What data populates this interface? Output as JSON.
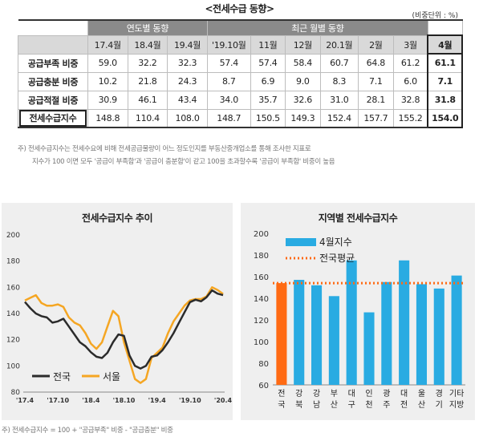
{
  "table": {
    "title": "<전세수급 동향>",
    "unit": "(비중단위 : %)",
    "group_yearly": "연도별 동향",
    "group_monthly": "최근 월별 동향",
    "columns": [
      "17.4월",
      "18.4월",
      "19.4월",
      "'19.10월",
      "11월",
      "12월",
      "20.1월",
      "2월",
      "3월",
      "4월"
    ],
    "rows": [
      {
        "label": "공급부족 비중",
        "values": [
          "59.0",
          "32.2",
          "32.3",
          "57.4",
          "57.4",
          "58.4",
          "60.7",
          "64.8",
          "61.2",
          "61.1"
        ]
      },
      {
        "label": "공급충분 비중",
        "values": [
          "10.2",
          "21.8",
          "24.3",
          "8.7",
          "6.9",
          "9.0",
          "8.3",
          "7.1",
          "6.0",
          "7.1"
        ]
      },
      {
        "label": "공급적절 비중",
        "values": [
          "30.9",
          "46.1",
          "43.4",
          "34.0",
          "35.7",
          "32.6",
          "31.0",
          "28.1",
          "32.8",
          "31.8"
        ]
      },
      {
        "label": "전세수급지수",
        "values": [
          "148.8",
          "110.4",
          "108.0",
          "148.7",
          "150.5",
          "149.3",
          "152.4",
          "157.7",
          "155.2",
          "154.0"
        ]
      }
    ],
    "note_line1": "주) 전세수급지수는 전세수요에 비해 전세공급물량이 어느 정도인지를 부동산중개업소를 통해 조사한 지표로",
    "note_line2": "지수가 100 이면 모두 '공급이 부족함'과 '공급이 충분함'이 같고 100을 초과할수록 '공급이 부족함' 비중이 높음"
  },
  "footnote": "주) 전세수급지수 = 100 + \"공급부족\" 비중 - \"공급충분\" 비중",
  "colors": {
    "national": "#2b2b2b",
    "seoul": "#f5a623",
    "bar": "#29abe2",
    "bar_national": "#ff6a13",
    "avg": "#ff6a13"
  },
  "chart_data": [
    {
      "type": "line",
      "title": "전세수급지수 추이",
      "ylim": [
        80,
        200
      ],
      "yticks": [
        80,
        100,
        120,
        140,
        160,
        180,
        200
      ],
      "xticks": [
        "'17.4",
        "'17.10",
        "'18.4",
        "'18.10",
        "'19.4",
        "'19.10",
        "'20.4"
      ],
      "legend_position": "bottom-left",
      "series": [
        {
          "name": "전국",
          "values": [
            148.8,
            144,
            140,
            138,
            137,
            133,
            134,
            136,
            130,
            124,
            118,
            115,
            110.4,
            107,
            106,
            110,
            118,
            124,
            123,
            108,
            100,
            98,
            100,
            107,
            108,
            112,
            118,
            125,
            133,
            141,
            148.7,
            150.5,
            149.3,
            152.4,
            157.7,
            155.2,
            154.0
          ]
        },
        {
          "name": "서울",
          "values": [
            150,
            152,
            154,
            148,
            146,
            146,
            147,
            145,
            137,
            133,
            131,
            125,
            117,
            113,
            118,
            130,
            142,
            138,
            118,
            104,
            90,
            87,
            90,
            106,
            110,
            114,
            125,
            134,
            140,
            146,
            150,
            151,
            151,
            153,
            160,
            158,
            155
          ]
        }
      ]
    },
    {
      "type": "bar",
      "title": "지역별 전세수급지수",
      "ylim": [
        60,
        200
      ],
      "yticks": [
        60,
        80,
        100,
        120,
        140,
        160,
        180,
        200
      ],
      "categories": [
        [
          "전",
          "국"
        ],
        [
          "강",
          "북"
        ],
        [
          "강",
          "남"
        ],
        [
          "부",
          "산"
        ],
        [
          "대",
          "구"
        ],
        [
          "인",
          "천"
        ],
        [
          "광",
          "주"
        ],
        [
          "대",
          "전"
        ],
        [
          "울",
          "산"
        ],
        [
          "경",
          "기"
        ],
        [
          "기타",
          "지방"
        ]
      ],
      "series": [
        {
          "name": "4월지수",
          "values": [
            154.0,
            157,
            152,
            142,
            175,
            127,
            155,
            175,
            153,
            149,
            161
          ]
        }
      ],
      "reference_line": {
        "name": "전국평균",
        "value": 154.0
      }
    }
  ]
}
